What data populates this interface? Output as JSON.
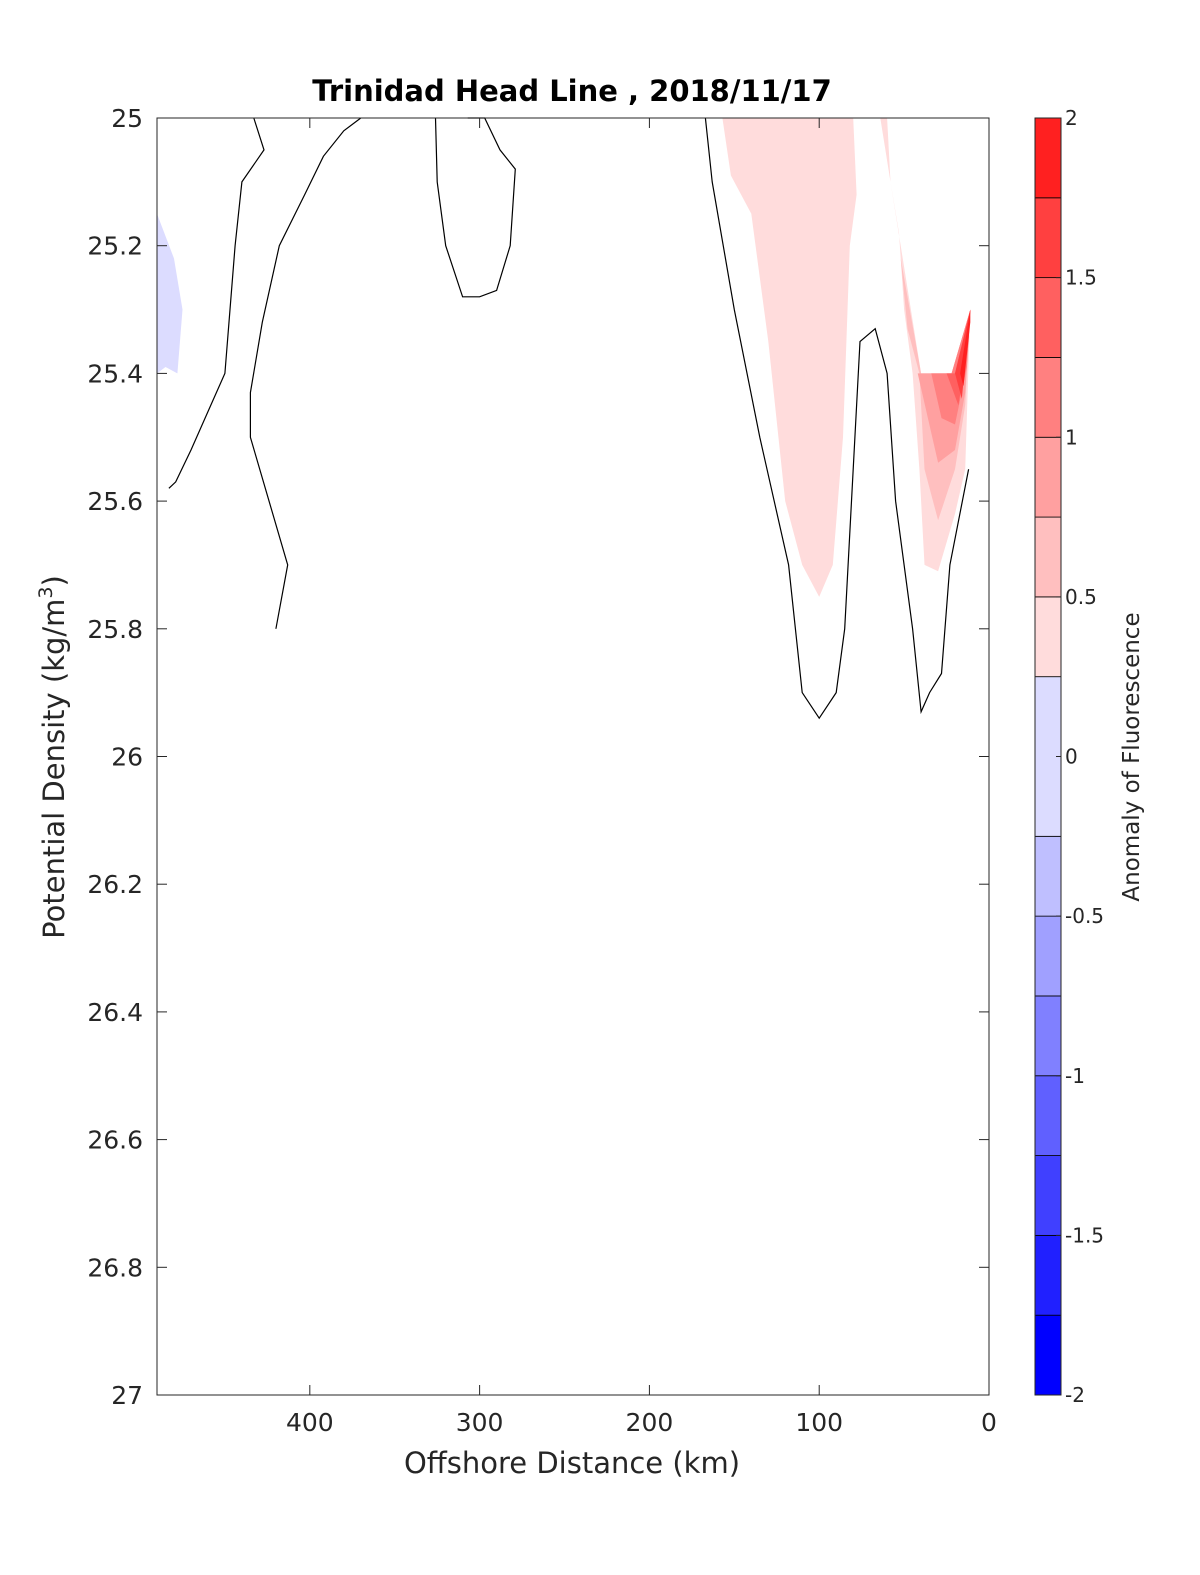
{
  "chart_data": {
    "type": "contourf",
    "title": "Trinidad Head Line , 2018/11/17",
    "xlabel": "Offshore Distance (km)",
    "ylabel": "Potential Density (kg/m",
    "ylabel_superscript": "3",
    "ylabel_close": ")",
    "xlim": [
      490,
      0
    ],
    "ylim": [
      25,
      27
    ],
    "x_reversed": true,
    "y_reversed": true,
    "x_ticks": [
      400,
      300,
      200,
      100,
      0
    ],
    "y_ticks": [
      25,
      25.2,
      25.4,
      25.6,
      25.8,
      26,
      26.2,
      26.4,
      26.6,
      26.8,
      27
    ],
    "x_tick_labels": [
      "400",
      "300",
      "200",
      "100",
      "0"
    ],
    "y_tick_labels": [
      "25",
      "25.2",
      "25.4",
      "25.6",
      "25.8",
      "26",
      "26.2",
      "26.4",
      "26.6",
      "26.8",
      "27"
    ],
    "colorbar": {
      "label": "Anomaly of Fluorescence",
      "range": [
        -2,
        2
      ],
      "levels": [
        -2,
        -1.75,
        -1.5,
        -1.25,
        -1,
        -0.75,
        -0.5,
        -0.25,
        0.25,
        0.5,
        0.75,
        1,
        1.25,
        1.5,
        1.75,
        2
      ],
      "ticks": [
        -2,
        -1.5,
        -1,
        -0.5,
        0,
        0.5,
        1,
        1.5,
        2
      ],
      "tick_labels": [
        "-2",
        "-1.5",
        "-1",
        "-0.5",
        "0",
        "0.5",
        "1",
        "1.5",
        "2"
      ],
      "colors": [
        "#0000ff",
        "#2020ff",
        "#4040ff",
        "#6060ff",
        "#8080ff",
        "#a0a0ff",
        "#bfbfff",
        "#dcdcff",
        "#ffffff",
        "#ffdcdc",
        "#ffbfbf",
        "#ffa0a0",
        "#ff8080",
        "#ff6060",
        "#ff4040",
        "#ff2020",
        "#ff0000"
      ]
    },
    "filled_regions": [
      {
        "name": "negative-patch",
        "level": -0.25,
        "color": "#dcdcff",
        "points": [
          [
            490,
            25.15
          ],
          [
            480,
            25.22
          ],
          [
            475,
            25.3
          ],
          [
            478,
            25.4
          ],
          [
            485,
            25.39
          ],
          [
            490,
            25.4
          ]
        ]
      },
      {
        "name": "positive-plume-outer",
        "level": 0.25,
        "color": "#ffdcdc",
        "points": [
          [
            157,
            25
          ],
          [
            80,
            25
          ],
          [
            78,
            25.12
          ],
          [
            82,
            25.2
          ],
          [
            86,
            25.5
          ],
          [
            92,
            25.7
          ],
          [
            100,
            25.75
          ],
          [
            110,
            25.7
          ],
          [
            120,
            25.6
          ],
          [
            130,
            25.35
          ],
          [
            140,
            25.15
          ],
          [
            152,
            25.09
          ]
        ]
      },
      {
        "name": "positive-coastal-outer",
        "level": 0.25,
        "color": "#ffdcdc",
        "points": [
          [
            64,
            25
          ],
          [
            60,
            25
          ],
          [
            58,
            25.1
          ],
          [
            53,
            25.18
          ],
          [
            50,
            25.3
          ],
          [
            45,
            25.4
          ],
          [
            41,
            25.55
          ],
          [
            38,
            25.7
          ],
          [
            30,
            25.71
          ],
          [
            20,
            25.62
          ],
          [
            14,
            25.55
          ],
          [
            11,
            25.3
          ],
          [
            22,
            25.4
          ],
          [
            40,
            25.4
          ]
        ]
      },
      {
        "name": "positive-coastal-050",
        "level": 0.5,
        "color": "#ffbfbf",
        "points": [
          [
            52,
            25.22
          ],
          [
            48,
            25.33
          ],
          [
            41,
            25.4
          ],
          [
            38,
            25.55
          ],
          [
            30,
            25.63
          ],
          [
            20,
            25.55
          ],
          [
            14,
            25.45
          ],
          [
            11,
            25.3
          ],
          [
            22,
            25.4
          ],
          [
            40,
            25.4
          ]
        ]
      },
      {
        "name": "positive-coastal-075",
        "level": 0.75,
        "color": "#ffa0a0",
        "points": [
          [
            42,
            25.4
          ],
          [
            36,
            25.47
          ],
          [
            30,
            25.54
          ],
          [
            20,
            25.52
          ],
          [
            14,
            25.43
          ],
          [
            11,
            25.3
          ],
          [
            22,
            25.4
          ]
        ]
      },
      {
        "name": "positive-coastal-100",
        "level": 1.0,
        "color": "#ff8080",
        "points": [
          [
            34,
            25.4
          ],
          [
            28,
            25.47
          ],
          [
            20,
            25.48
          ],
          [
            13,
            25.39
          ],
          [
            11,
            25.3
          ],
          [
            22,
            25.4
          ]
        ]
      },
      {
        "name": "positive-coastal-125",
        "level": 1.25,
        "color": "#ff6060",
        "points": [
          [
            25,
            25.4
          ],
          [
            18,
            25.45
          ],
          [
            12,
            25.35
          ],
          [
            11,
            25.3
          ],
          [
            20,
            25.4
          ]
        ]
      },
      {
        "name": "positive-coastal-150",
        "level": 1.5,
        "color": "#ff4040",
        "points": [
          [
            20,
            25.4
          ],
          [
            16,
            25.44
          ],
          [
            12,
            25.33
          ],
          [
            11,
            25.3
          ]
        ]
      },
      {
        "name": "positive-coastal-175",
        "level": 1.75,
        "color": "#ff2020",
        "points": [
          [
            17,
            25.4
          ],
          [
            15,
            25.42
          ],
          [
            11,
            25.32
          ],
          [
            11,
            25.3
          ]
        ]
      }
    ],
    "contour_lines": [
      {
        "name": "zero-contour-left-a",
        "level": 0,
        "points": [
          [
            433,
            25
          ],
          [
            427,
            25.05
          ],
          [
            440,
            25.1
          ],
          [
            444,
            25.2
          ],
          [
            447,
            25.3
          ],
          [
            450,
            25.4
          ],
          [
            460,
            25.46
          ],
          [
            470,
            25.52
          ],
          [
            479,
            25.57
          ],
          [
            483,
            25.58
          ]
        ]
      },
      {
        "name": "zero-contour-left-b",
        "level": 0,
        "points": [
          [
            370,
            25
          ],
          [
            380,
            25.02
          ],
          [
            392,
            25.06
          ],
          [
            403,
            25.12
          ],
          [
            418,
            25.2
          ],
          [
            428,
            25.32
          ],
          [
            435,
            25.43
          ],
          [
            435,
            25.5
          ],
          [
            413,
            25.7
          ],
          [
            420,
            25.8
          ]
        ]
      },
      {
        "name": "zero-contour-mid",
        "level": 0,
        "points": [
          [
            326,
            25
          ],
          [
            325,
            25.1
          ],
          [
            320,
            25.2
          ],
          [
            310,
            25.28
          ],
          [
            300,
            25.28
          ],
          [
            290,
            25.27
          ],
          [
            282,
            25.2
          ],
          [
            279,
            25.08
          ],
          [
            288,
            25.05
          ],
          [
            297,
            25
          ],
          [
            307,
            25
          ]
        ]
      },
      {
        "name": "zero-contour-plume",
        "level": 0,
        "points": [
          [
            167,
            25
          ],
          [
            163,
            25.1
          ],
          [
            150,
            25.3
          ],
          [
            135,
            25.5
          ],
          [
            118,
            25.7
          ],
          [
            110,
            25.9
          ],
          [
            100,
            25.94
          ],
          [
            90,
            25.9
          ],
          [
            85,
            25.8
          ],
          [
            76,
            25.35
          ],
          [
            67,
            25.33
          ],
          [
            60,
            25.4
          ],
          [
            55,
            25.6
          ],
          [
            45,
            25.8
          ],
          [
            40,
            25.93
          ],
          [
            35,
            25.9
          ],
          [
            28,
            25.87
          ],
          [
            23,
            25.7
          ],
          [
            12,
            25.55
          ]
        ]
      }
    ]
  }
}
